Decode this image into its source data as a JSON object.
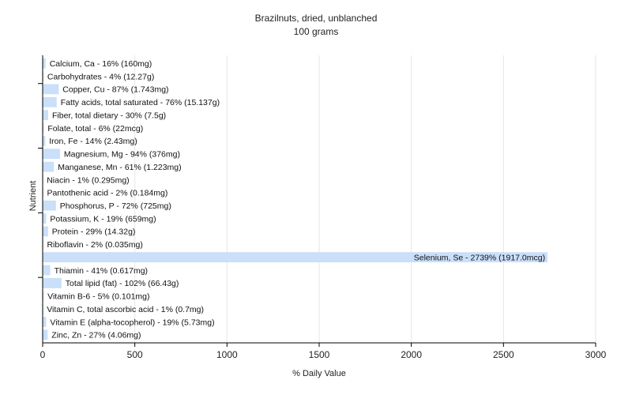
{
  "chart_data": {
    "type": "bar",
    "orientation": "horizontal",
    "title": "Brazilnuts, dried, unblanched",
    "subtitle": "100 grams",
    "xlabel": "% Daily Value",
    "ylabel": "Nutrient",
    "xlim": [
      0,
      3000
    ],
    "xticks": [
      0,
      500,
      1000,
      1500,
      2000,
      2500,
      3000
    ],
    "grid": "vertical",
    "bar_color": "#c9dffa",
    "grid_color": "#e6e6e6",
    "axis_color": "#000000",
    "categories": [
      "Calcium, Ca",
      "Carbohydrates",
      "Copper, Cu",
      "Fatty acids, total saturated",
      "Fiber, total dietary",
      "Folate, total",
      "Iron, Fe",
      "Magnesium, Mg",
      "Manganese, Mn",
      "Niacin",
      "Pantothenic acid",
      "Phosphorus, P",
      "Potassium, K",
      "Protein",
      "Riboflavin",
      "Selenium, Se",
      "Thiamin",
      "Total lipid (fat)",
      "Vitamin B-6",
      "Vitamin C, total ascorbic acid",
      "Vitamin E (alpha-tocopherol)",
      "Zinc, Zn"
    ],
    "values": [
      16,
      4,
      87,
      76,
      30,
      6,
      14,
      94,
      61,
      1,
      2,
      72,
      19,
      29,
      2,
      2739,
      41,
      102,
      5,
      1,
      19,
      27
    ],
    "bar_labels": [
      "Calcium, Ca - 16% (160mg)",
      "Carbohydrates - 4% (12.27g)",
      "Copper, Cu - 87% (1.743mg)",
      "Fatty acids, total saturated - 76% (15.137g)",
      "Fiber, total dietary - 30% (7.5g)",
      "Folate, total - 6% (22mcg)",
      "Iron, Fe - 14% (2.43mg)",
      "Magnesium, Mg - 94% (376mg)",
      "Manganese, Mn - 61% (1.223mg)",
      "Niacin - 1% (0.295mg)",
      "Pantothenic acid - 2% (0.184mg)",
      "Phosphorus, P - 72% (725mg)",
      "Potassium, K - 19% (659mg)",
      "Protein - 29% (14.32g)",
      "Riboflavin - 2% (0.035mg)",
      "Selenium, Se - 2739% (1917.0mcg)",
      "Thiamin - 41% (0.617mg)",
      "Total lipid (fat) - 102% (66.43g)",
      "Vitamin B-6 - 5% (0.101mg)",
      "Vitamin C, total ascorbic acid - 1% (0.7mg)",
      "Vitamin E (alpha-tocopherol) - 19% (5.73mg)",
      "Zinc, Zn - 27% (4.06mg)"
    ]
  }
}
